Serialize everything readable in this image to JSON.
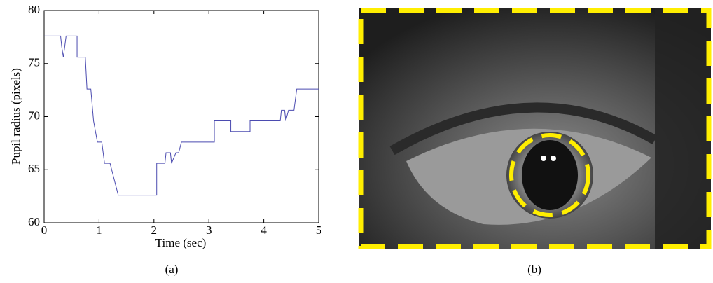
{
  "chart_data": {
    "type": "line",
    "xlabel": "Time (sec)",
    "ylabel": "Pupil radius (pixels)",
    "xlim": [
      0,
      5
    ],
    "ylim": [
      60,
      80
    ],
    "xticks": [
      0,
      1,
      2,
      3,
      4,
      5
    ],
    "yticks": [
      60,
      65,
      70,
      75,
      80
    ],
    "grid": false,
    "color": "#4b4bb0",
    "x": [
      0,
      0.3,
      0.32,
      0.35,
      0.4,
      0.6,
      0.6,
      0.75,
      0.78,
      0.85,
      0.9,
      0.97,
      1.05,
      1.1,
      1.2,
      1.35,
      2.05,
      2.05,
      2.2,
      2.22,
      2.3,
      2.32,
      2.4,
      2.45,
      2.5,
      2.55,
      3.1,
      3.1,
      3.4,
      3.4,
      3.75,
      3.75,
      4.3,
      4.32,
      4.38,
      4.4,
      4.45,
      4.48,
      4.55,
      4.6,
      5
    ],
    "values": [
      77.6,
      77.6,
      76.6,
      75.6,
      77.6,
      77.6,
      75.6,
      75.6,
      72.6,
      72.6,
      69.6,
      67.6,
      67.6,
      65.6,
      65.6,
      62.6,
      62.6,
      65.6,
      65.6,
      66.6,
      66.6,
      65.6,
      66.6,
      66.6,
      67.6,
      67.6,
      67.6,
      69.6,
      69.6,
      68.6,
      68.6,
      69.6,
      69.6,
      70.6,
      70.6,
      69.6,
      70.6,
      70.6,
      70.6,
      72.6,
      72.6
    ]
  },
  "captions": [
    "(a)",
    "(b)"
  ]
}
